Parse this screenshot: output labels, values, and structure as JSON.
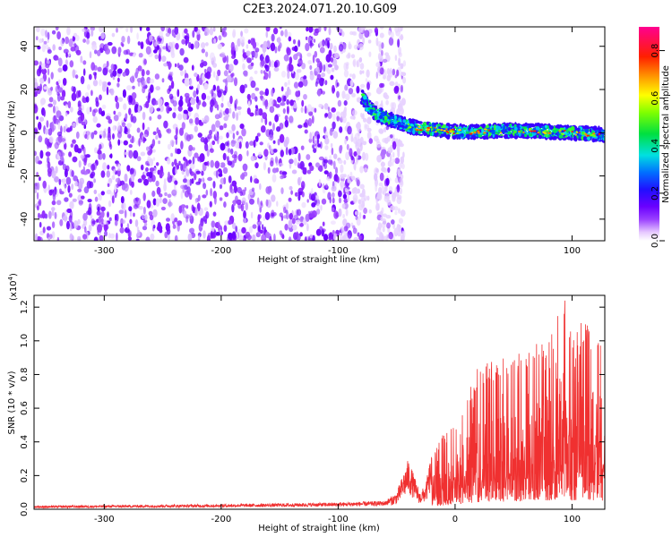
{
  "title": "C2E3.2024.071.20.10.G09",
  "chart_data": [
    {
      "type": "heatmap",
      "name": "spectrogram",
      "xlabel": "Height of straight line (km)",
      "ylabel": "Frequency (Hz)",
      "xlim": [
        -360,
        128
      ],
      "ylim": [
        -50,
        49
      ],
      "xticks": [
        -300,
        -200,
        -100,
        0,
        100
      ],
      "yticks": [
        -40,
        -20,
        0,
        20,
        40
      ],
      "noise_region": {
        "x_start": -360,
        "x_end": -72,
        "gap_x_start": -68,
        "gap_x_end": -43
      },
      "signal_track": {
        "x": [
          -80,
          -75,
          -70,
          -65,
          -60,
          -55,
          -50,
          -45,
          -40,
          -35,
          -30,
          -20,
          -10,
          0,
          20,
          40,
          60,
          80,
          100,
          128
        ],
        "freq": [
          17,
          13,
          10,
          8,
          7,
          6,
          5,
          4,
          3,
          2.5,
          2,
          1.5,
          1,
          0.5,
          0.5,
          1,
          1,
          0.5,
          0,
          -1
        ]
      },
      "colorbar": {
        "label": "Normalized spectral amplitude",
        "range": [
          0.0,
          0.9
        ],
        "ticks": [
          0.0,
          0.2,
          0.4,
          0.6,
          0.8
        ],
        "tick_labels": [
          "0.0",
          "0.2",
          "0.4",
          "0.6",
          "0.8"
        ]
      }
    },
    {
      "type": "line",
      "name": "snr",
      "series": [
        {
          "name": "SNR",
          "color": "#f03030"
        }
      ],
      "xlabel": "Height of straight line (km)",
      "ylabel": "SNR (10 * v/v)",
      "scale_label": "(x10",
      "scale_exponent": "4",
      "scale_close": ")",
      "xlim": [
        -360,
        128
      ],
      "ylim": [
        0,
        1.27
      ],
      "xticks": [
        -300,
        -200,
        -100,
        0,
        100
      ],
      "yticks": [
        0.0,
        0.2,
        0.4,
        0.6,
        0.8,
        1.0,
        1.2
      ],
      "ytick_labels": [
        "0.0",
        "0.2",
        "0.4",
        "0.6",
        "0.8",
        "1.0",
        "1.2"
      ],
      "envelope": {
        "x": [
          -360,
          -200,
          -100,
          -60,
          -50,
          -45,
          -40,
          -35,
          -30,
          -25,
          -20,
          -10,
          0,
          20,
          40,
          60,
          80,
          95,
          100,
          110,
          128
        ],
        "y": [
          0.02,
          0.03,
          0.04,
          0.05,
          0.1,
          0.2,
          0.3,
          0.2,
          0.1,
          0.15,
          0.35,
          0.45,
          0.55,
          0.85,
          0.9,
          0.95,
          1.05,
          1.27,
          1.0,
          1.15,
          0.95
        ]
      }
    }
  ]
}
